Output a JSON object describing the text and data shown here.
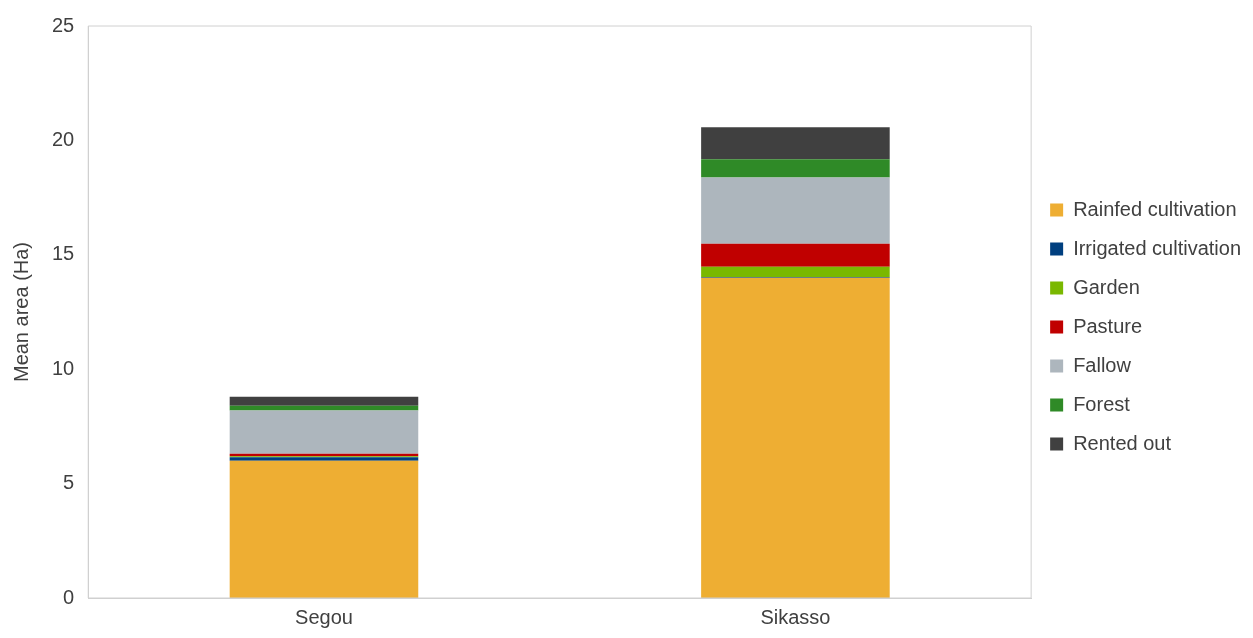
{
  "chart_data": {
    "type": "bar",
    "stacked": true,
    "ylabel": "Mean area (Ha)",
    "categories": [
      "Segou",
      "Sikasso"
    ],
    "series": [
      {
        "name": "Rainfed cultivation",
        "color": "#eeae33",
        "values": [
          6.0,
          14.0
        ]
      },
      {
        "name": "Irrigated cultivation",
        "color": "#003f7f",
        "values": [
          0.15,
          0.03
        ]
      },
      {
        "name": "Garden",
        "color": "#7ab800",
        "values": [
          0.05,
          0.45
        ]
      },
      {
        "name": "Pasture",
        "color": "#c00000",
        "values": [
          0.1,
          1.0
        ]
      },
      {
        "name": "Fallow",
        "color": "#adb6bd",
        "values": [
          1.9,
          2.9
        ]
      },
      {
        "name": "Forest",
        "color": "#2f8a27",
        "values": [
          0.2,
          0.8
        ]
      },
      {
        "name": "Rented out",
        "color": "#404040",
        "values": [
          0.4,
          1.4
        ]
      }
    ],
    "ylim": [
      0,
      25
    ],
    "yticks": [
      0,
      5,
      10,
      15,
      20,
      25
    ],
    "grid": false,
    "legend": "right"
  }
}
